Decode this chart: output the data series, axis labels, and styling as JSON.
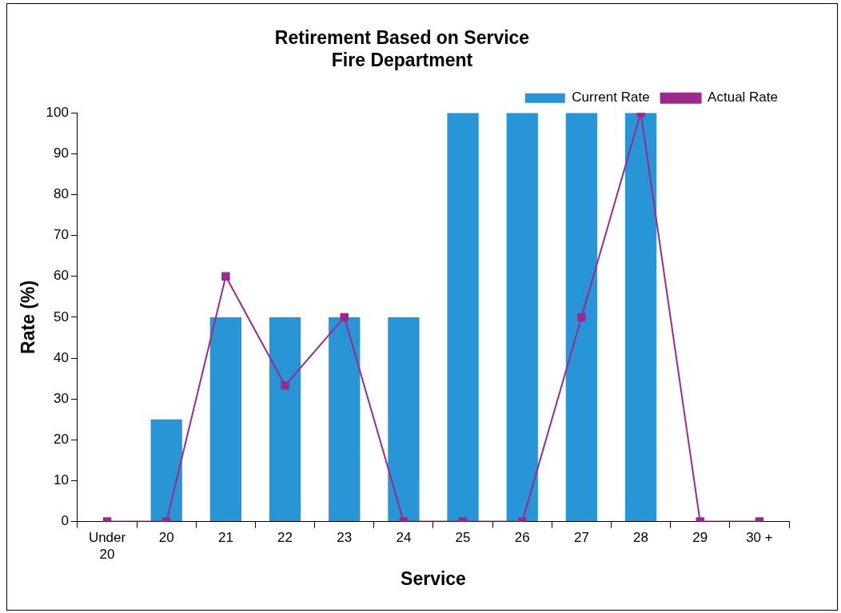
{
  "chart_data": {
    "type": "bar",
    "title": "Retirement Based on Service\nFire Department",
    "xlabel": "Service",
    "ylabel": "Rate (%)",
    "categories": [
      "Under 20",
      "20",
      "21",
      "22",
      "23",
      "24",
      "25",
      "26",
      "27",
      "28",
      "29",
      "30 +"
    ],
    "series": [
      {
        "name": "Current Rate",
        "color": "#2896d6",
        "values": [
          0,
          25,
          50,
          50,
          50,
          50,
          100,
          100,
          100,
          100,
          0,
          0
        ]
      },
      {
        "name": "Actual Rate",
        "type": "line",
        "color": "#9b2a8c",
        "marker": "square",
        "values": [
          0,
          0,
          60,
          33.3,
          50,
          0,
          0,
          0,
          50,
          100,
          0,
          0
        ]
      }
    ],
    "ylim": [
      0,
      100
    ],
    "yticks": [
      0,
      10,
      20,
      30,
      40,
      50,
      60,
      70,
      80,
      90,
      100
    ],
    "grid": false,
    "legend": "top right"
  }
}
